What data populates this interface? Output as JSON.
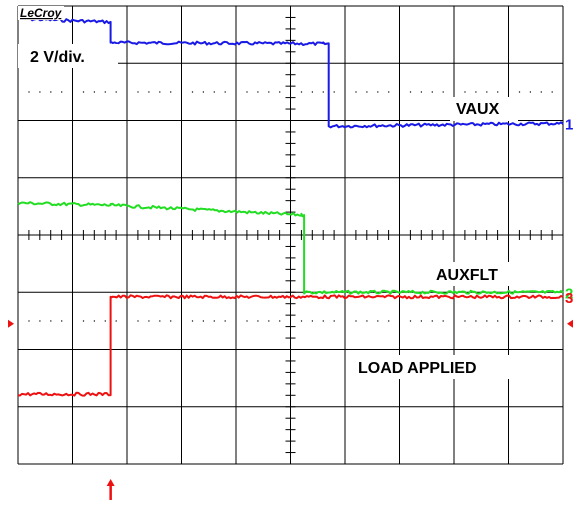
{
  "brand": "LeCroy",
  "scale_label": "2 V/div.",
  "colors": {
    "background": "#ffffff",
    "grid": "#000000",
    "ch1": "#1a1ae6",
    "ch2": "#22dd22",
    "ch3": "#ee1111",
    "marker": "#ee1111"
  },
  "chart_data": {
    "type": "line",
    "title": "",
    "xlabel": "",
    "ylabel": "",
    "x_divisions": 10,
    "y_divisions": 8,
    "xlim": [
      0,
      10
    ],
    "ylim": [
      -4,
      4
    ],
    "grid": true,
    "annotations": [
      "2 V/div.",
      "VAUX",
      "AUXFLT",
      "LOAD APPLIED"
    ],
    "trigger_time_div": 1.7,
    "trigger_level_div": -1.55,
    "series": [
      {
        "name": "VAUX",
        "marker_label": "1",
        "color": "#1a1ae6",
        "points": [
          [
            0,
            3.78
          ],
          [
            1.7,
            3.72
          ],
          [
            1.7,
            3.36
          ],
          [
            5.6,
            3.34
          ],
          [
            5.7,
            3.34
          ],
          [
            5.7,
            1.9
          ],
          [
            10,
            1.95
          ]
        ]
      },
      {
        "name": "AUXFLT",
        "marker_label": "2",
        "color": "#22dd22",
        "points": [
          [
            0,
            0.56
          ],
          [
            1.7,
            0.52
          ],
          [
            5.2,
            0.35
          ],
          [
            5.25,
            0.35
          ],
          [
            5.25,
            -1.0
          ],
          [
            10,
            -1.0
          ]
        ]
      },
      {
        "name": "LOAD",
        "marker_label": "3",
        "color": "#ee1111",
        "points": [
          [
            0,
            -2.78
          ],
          [
            1.7,
            -2.78
          ],
          [
            1.7,
            -1.08
          ],
          [
            10,
            -1.08
          ]
        ]
      }
    ]
  }
}
